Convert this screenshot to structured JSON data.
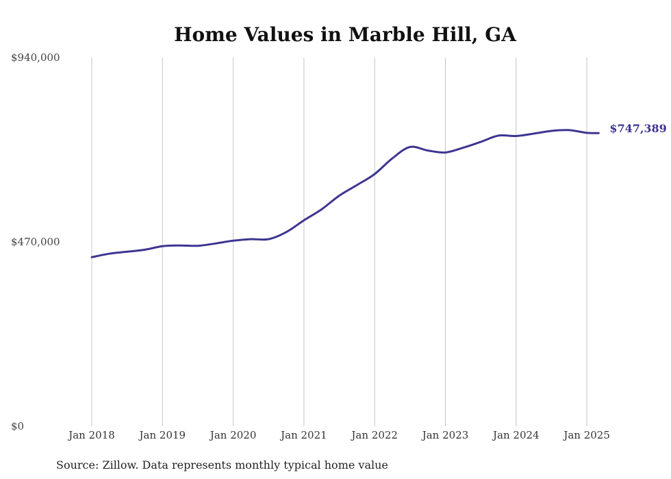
{
  "chart_data": {
    "type": "line",
    "title": "Home Values in Marble Hill, GA",
    "ylim": [
      0,
      940000
    ],
    "y_ticks": [
      {
        "value": 0,
        "label": "$0"
      },
      {
        "value": 470000,
        "label": "$470,000"
      },
      {
        "value": 940000,
        "label": "$940,000"
      }
    ],
    "x_ticks": [
      "Jan 2018",
      "Jan 2019",
      "Jan 2020",
      "Jan 2021",
      "Jan 2022",
      "Jan 2023",
      "Jan 2024",
      "Jan 2025"
    ],
    "x_range": [
      "2018-01",
      "2025-03"
    ],
    "grid": "vertical",
    "line_color": "#3d3591",
    "series": [
      {
        "name": "",
        "points": [
          {
            "x": "2018-01",
            "y": 431000
          },
          {
            "x": "2018-04",
            "y": 440000
          },
          {
            "x": "2018-07",
            "y": 445000
          },
          {
            "x": "2018-10",
            "y": 450000
          },
          {
            "x": "2019-01",
            "y": 459000
          },
          {
            "x": "2019-04",
            "y": 461000
          },
          {
            "x": "2019-07",
            "y": 460000
          },
          {
            "x": "2019-10",
            "y": 466000
          },
          {
            "x": "2020-01",
            "y": 473000
          },
          {
            "x": "2020-04",
            "y": 477000
          },
          {
            "x": "2020-07",
            "y": 477000
          },
          {
            "x": "2020-10",
            "y": 495000
          },
          {
            "x": "2021-01",
            "y": 525000
          },
          {
            "x": "2021-04",
            "y": 553000
          },
          {
            "x": "2021-07",
            "y": 588000
          },
          {
            "x": "2021-10",
            "y": 615000
          },
          {
            "x": "2022-01",
            "y": 643000
          },
          {
            "x": "2022-04",
            "y": 683000
          },
          {
            "x": "2022-07",
            "y": 712000
          },
          {
            "x": "2022-10",
            "y": 703000
          },
          {
            "x": "2023-01",
            "y": 698000
          },
          {
            "x": "2023-04",
            "y": 710000
          },
          {
            "x": "2023-07",
            "y": 725000
          },
          {
            "x": "2023-10",
            "y": 741000
          },
          {
            "x": "2024-01",
            "y": 740000
          },
          {
            "x": "2024-04",
            "y": 746000
          },
          {
            "x": "2024-07",
            "y": 753000
          },
          {
            "x": "2024-10",
            "y": 755000
          },
          {
            "x": "2025-01",
            "y": 748000
          },
          {
            "x": "2025-03",
            "y": 747389
          }
        ]
      }
    ],
    "end_label": "$747,389",
    "source": "Source: Zillow. Data represents monthly typical home value"
  }
}
